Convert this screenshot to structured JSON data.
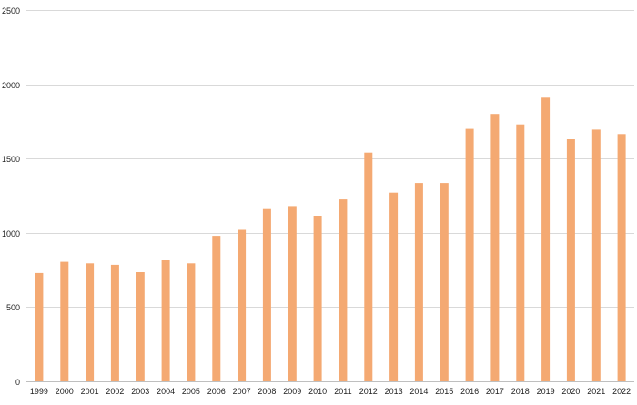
{
  "chart_data": {
    "type": "bar",
    "title": "",
    "xlabel": "",
    "ylabel": "",
    "ylim": [
      0,
      2500
    ],
    "yticks": [
      0,
      500,
      1000,
      1500,
      2000,
      2500
    ],
    "grid": true,
    "legend": "none",
    "categories": [
      "1999",
      "2000",
      "2001",
      "2002",
      "2003",
      "2004",
      "2005",
      "2006",
      "2007",
      "2008",
      "2009",
      "2010",
      "2011",
      "2012",
      "2013",
      "2014",
      "2015",
      "2016",
      "2017",
      "2018",
      "2019",
      "2020",
      "2021",
      "2022"
    ],
    "values": [
      730,
      805,
      795,
      785,
      735,
      815,
      795,
      980,
      1020,
      1160,
      1180,
      1115,
      1225,
      1540,
      1270,
      1335,
      1335,
      1700,
      1800,
      1730,
      1910,
      1630,
      1695,
      1665
    ],
    "colors": {
      "bar": "#F4A972",
      "grid": "#d9d9d9",
      "axis": "#bfbfbf"
    }
  }
}
